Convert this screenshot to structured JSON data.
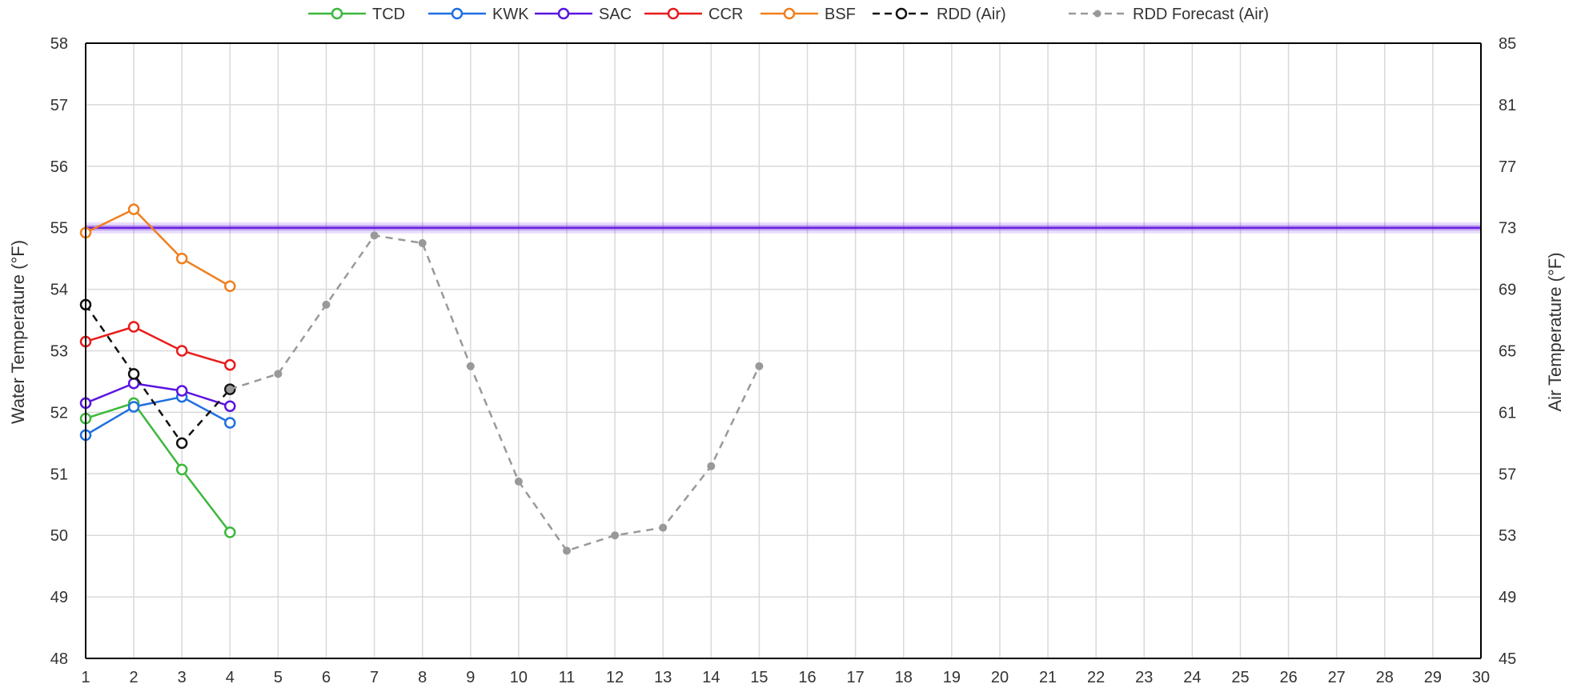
{
  "chart_data": {
    "type": "line",
    "x": [
      1,
      2,
      3,
      4,
      5,
      6,
      7,
      8,
      9,
      10,
      11,
      12,
      13,
      14,
      15,
      16,
      17,
      18,
      19,
      20,
      21,
      22,
      23,
      24,
      25,
      26,
      27,
      28,
      29,
      30
    ],
    "xlim": [
      1,
      30
    ],
    "ylabel": "Water Temperature (°F)",
    "ylim": [
      48,
      58
    ],
    "yticks": [
      48,
      49,
      50,
      51,
      52,
      53,
      54,
      55,
      56,
      57,
      58
    ],
    "y2label": "Air Temperature (°F)",
    "y2lim": [
      45,
      85
    ],
    "y2ticks": [
      45,
      49,
      53,
      57,
      61,
      65,
      69,
      73,
      77,
      81,
      85
    ],
    "grid": true,
    "legend_position": "top",
    "reference_line": {
      "y": 55,
      "color": "#6a1fe0"
    },
    "series": [
      {
        "name": "TCD",
        "axis": "left",
        "color": "#3cb83c",
        "dashed": false,
        "marker": "open-circle",
        "x": [
          1,
          2,
          3,
          4
        ],
        "values": [
          51.9,
          52.15,
          51.07,
          50.05
        ]
      },
      {
        "name": "KWK",
        "axis": "left",
        "color": "#1f6fe0",
        "dashed": false,
        "marker": "open-circle",
        "x": [
          1,
          2,
          3,
          4
        ],
        "values": [
          51.63,
          52.09,
          52.25,
          51.83
        ]
      },
      {
        "name": "SAC",
        "axis": "left",
        "color": "#5a14e0",
        "dashed": false,
        "marker": "open-circle",
        "x": [
          1,
          2,
          3,
          4
        ],
        "values": [
          52.15,
          52.47,
          52.35,
          52.1
        ]
      },
      {
        "name": "CCR",
        "axis": "left",
        "color": "#e81c1c",
        "dashed": false,
        "marker": "open-circle",
        "x": [
          1,
          2,
          3,
          4
        ],
        "values": [
          53.15,
          53.39,
          53.0,
          52.77
        ]
      },
      {
        "name": "BSF",
        "axis": "left",
        "color": "#f07f1e",
        "dashed": false,
        "marker": "open-circle",
        "x": [
          1,
          2,
          3,
          4
        ],
        "values": [
          54.92,
          55.3,
          54.5,
          54.05
        ]
      },
      {
        "name": "RDD (Air)",
        "axis": "right",
        "color": "#111111",
        "dashed": true,
        "marker": "open-circle",
        "x": [
          1,
          2,
          3,
          4
        ],
        "values": [
          68.0,
          63.5,
          59.0,
          62.5
        ]
      },
      {
        "name": "RDD Forecast (Air)",
        "axis": "right",
        "color": "#999999",
        "dashed": true,
        "marker": "dot",
        "x": [
          4,
          5,
          6,
          7,
          8,
          9,
          10,
          11,
          12,
          13,
          14,
          15
        ],
        "values": [
          62.5,
          63.5,
          68.0,
          72.5,
          72.0,
          64.0,
          56.5,
          52.0,
          53.0,
          53.5,
          57.5,
          64.0
        ]
      }
    ]
  }
}
